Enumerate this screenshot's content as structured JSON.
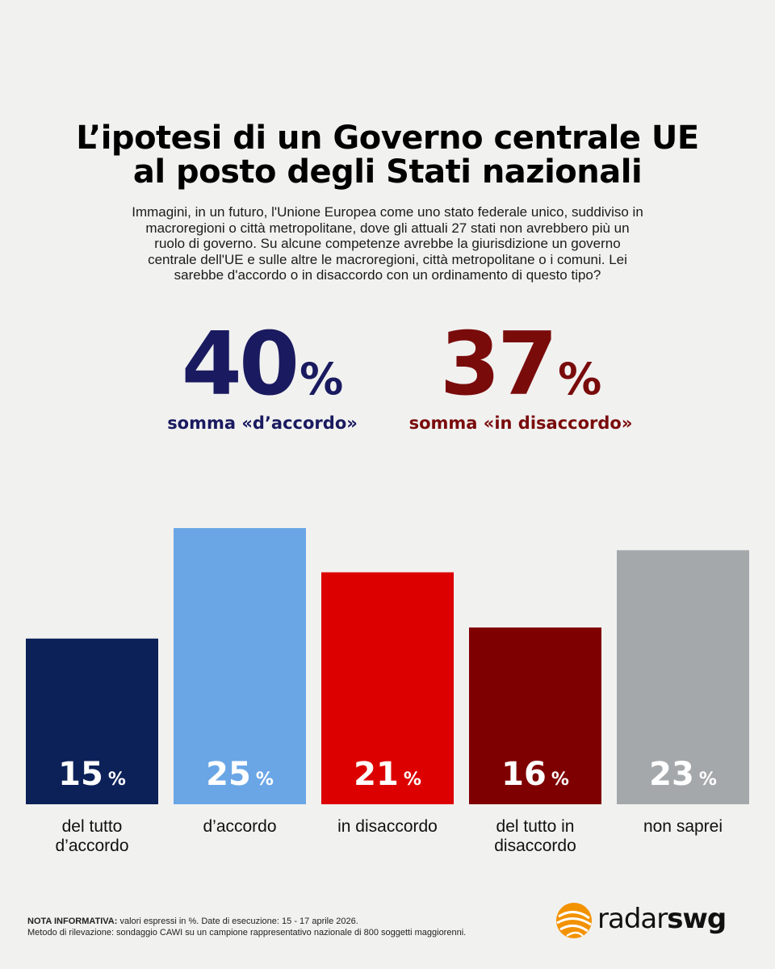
{
  "title": {
    "line1": "L’ipotesi di un Governo centrale UE",
    "line2": "al posto degli Stati nazionali"
  },
  "question": "Immagini, in un futuro, l'Unione Europea come uno stato federale unico, suddiviso in macroregioni o città metropolitane, dove gli attuali 27 stati non avrebbero più un ruolo di governo. Su alcune competenze avrebbe la giurisdizione un governo centrale dell'UE e sulle altre le macroregioni, città metropolitane o i comuni. Lei sarebbe d'accordo o in disaccordo con un ordinamento di questo tipo?",
  "summary": {
    "agree": {
      "value": "40",
      "unit": "%",
      "caption": "somma «d’accordo»"
    },
    "disagree": {
      "value": "37",
      "unit": "%",
      "caption": "somma «in disaccordo»"
    }
  },
  "colors": {
    "agree_text": "#1a1a60",
    "disagree_text": "#7a0b0b"
  },
  "chart_data": {
    "type": "bar",
    "title": "L’ipotesi di un Governo centrale UE al posto degli Stati nazionali",
    "categories": [
      "del tutto d’accordo",
      "d’accordo",
      "in disaccordo",
      "del tutto in disaccordo",
      "non saprei"
    ],
    "values": [
      15,
      25,
      21,
      16,
      23
    ],
    "unit": "%",
    "colors": [
      "#0c2158",
      "#6aa6e6",
      "#dc0000",
      "#7f0000",
      "#a5a8ab"
    ],
    "xlabel": "",
    "ylabel": "",
    "ylim": [
      0,
      25
    ]
  },
  "labels": {
    "bar1": {
      "line1": "del tutto",
      "line2": "d’accordo"
    },
    "bar2": {
      "line1": "d’accordo"
    },
    "bar3": {
      "line1": "in disaccordo"
    },
    "bar4": {
      "line1": "del tutto in",
      "line2": "disaccordo"
    },
    "bar5": {
      "line1": "non saprei"
    }
  },
  "footnote": {
    "label": "NOTA INFORMATIVA:",
    "line1": "valori espressi in %. Date di esecuzione: 15 - 17 aprile 2026.",
    "line2": "Metodo di rilevazione: sondaggio CAWI su un campione rappresentativo nazionale di 800 soggetti maggiorenni."
  },
  "logo": {
    "part1": "radar",
    "part2": "swg"
  }
}
